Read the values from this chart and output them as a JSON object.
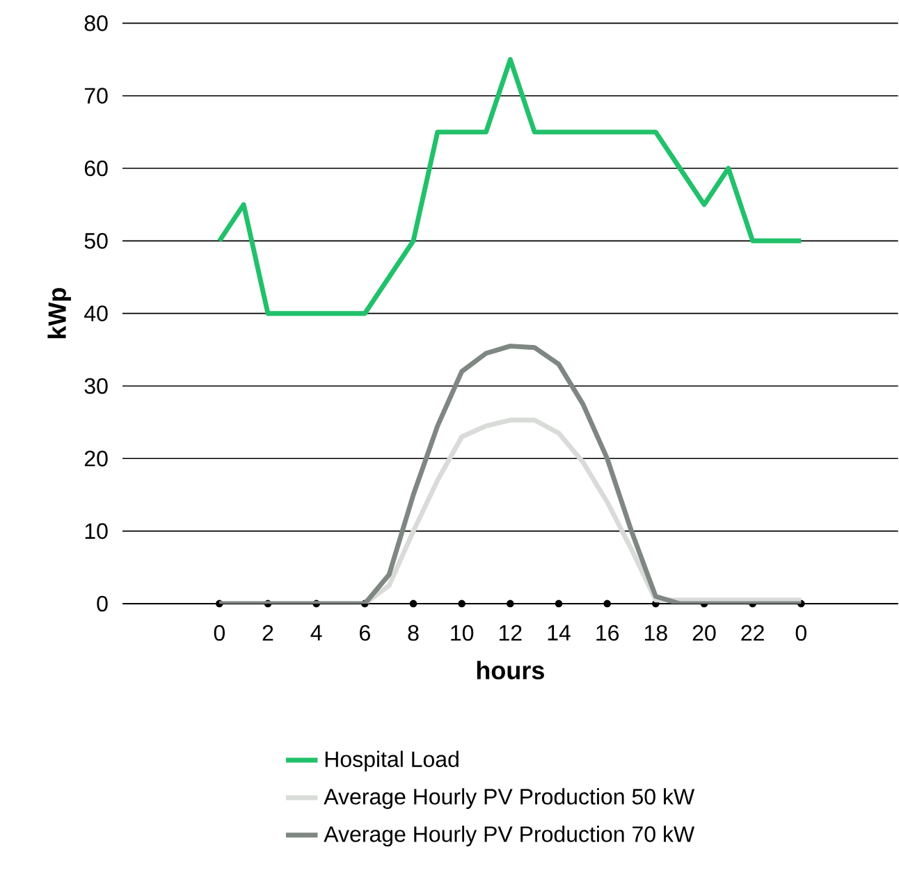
{
  "chart_data": {
    "type": "line",
    "xlabel": "hours",
    "ylabel": "kWp",
    "categories": [
      "0",
      null,
      "2",
      null,
      "4",
      null,
      "6",
      null,
      "8",
      null,
      "10",
      null,
      "12",
      null,
      "14",
      null,
      "16",
      null,
      "18",
      null,
      "20",
      null,
      "22",
      null,
      "0"
    ],
    "ylim": [
      0,
      80
    ],
    "yticks": [
      0,
      10,
      20,
      30,
      40,
      50,
      60,
      70,
      80
    ],
    "grid": "y",
    "legend": "bottom",
    "marker": "none",
    "line_style": "solid",
    "series": [
      {
        "name": "Hospital Load",
        "color": "#21c16b",
        "values": [
          50,
          55,
          40,
          40,
          40,
          40,
          40,
          45,
          50,
          65,
          65,
          65,
          75,
          65,
          65,
          65,
          65,
          65,
          65,
          60,
          55,
          60,
          50,
          50,
          50
        ]
      },
      {
        "name": "Average Hourly PV Production 50 kW",
        "color": "#d9dbd9",
        "values": [
          0,
          0,
          0,
          0,
          0,
          0,
          0,
          2.5,
          10,
          17,
          23,
          24.5,
          25.3,
          25.3,
          23.5,
          19.5,
          14,
          7.5,
          0.5,
          0.5,
          0.5,
          0.5,
          0.5,
          0.5,
          0.5
        ]
      },
      {
        "name": "Average Hourly PV Production 70 kW",
        "color": "#7f8783",
        "values": [
          0,
          0,
          0,
          0,
          0,
          0,
          0,
          4,
          15,
          24.5,
          32,
          34.5,
          35.5,
          35.3,
          33,
          27.5,
          20,
          10,
          1,
          0,
          0,
          0,
          0,
          0,
          0
        ]
      }
    ]
  }
}
